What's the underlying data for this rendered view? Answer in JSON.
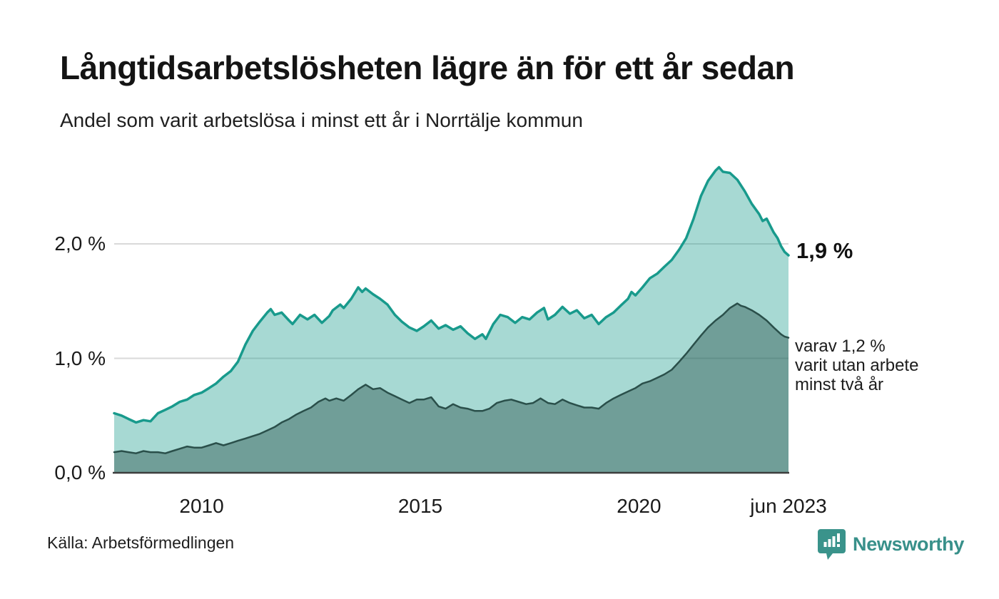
{
  "header": {
    "title": "Långtidsarbetslösheten lägre än för ett år sedan",
    "subtitle": "Andel som varit arbetslösa i minst ett år i Norrtälje kommun"
  },
  "annotations": {
    "latest_value": "1,9 %",
    "secondary_lines": [
      "varav 1,2 %",
      "varit utan arbete",
      "minst två år"
    ]
  },
  "footer": {
    "source": "Källa: Arbetsförmedlingen",
    "brand": "Newsworthy"
  },
  "colors": {
    "background": "#ffffff",
    "gridline": "#d9d9d9",
    "baseline": "#3d3d3d",
    "series_1yr_line": "#189a8c",
    "series_1yr_fill": "rgba(24,154,140,0.38)",
    "series_2yr_line": "#2a4f4a",
    "series_2yr_fill": "rgba(36,77,72,0.42)",
    "brand_teal": "#3a938b",
    "text": "#1a1a1a"
  },
  "chart_data": {
    "type": "area",
    "title": "Långtidsarbetslösheten lägre än för ett år sedan",
    "subtitle": "Andel som varit arbetslösa i minst ett år i Norrtälje kommun",
    "unit": "%",
    "x_range": [
      2008.0,
      2023.42
    ],
    "ylim": [
      0,
      2.8
    ],
    "grid": "horizontal-only",
    "legend_position": "annotated-right",
    "y_ticks": [
      {
        "value": 0.0,
        "label": "0,0 %"
      },
      {
        "value": 1.0,
        "label": "1,0 %"
      },
      {
        "value": 2.0,
        "label": "2,0 %"
      }
    ],
    "x_ticks": [
      {
        "year": 2010,
        "label": "2010"
      },
      {
        "year": 2015,
        "label": "2015"
      },
      {
        "year": 2020,
        "label": "2020"
      },
      {
        "year": 2023.42,
        "label": "jun 2023"
      }
    ],
    "series": [
      {
        "name": "Arbetslösa minst ett år",
        "latest_value_pct": 1.9,
        "points": [
          [
            2008.0,
            0.52
          ],
          [
            2008.17,
            0.5
          ],
          [
            2008.33,
            0.47
          ],
          [
            2008.5,
            0.44
          ],
          [
            2008.67,
            0.46
          ],
          [
            2008.83,
            0.45
          ],
          [
            2009.0,
            0.52
          ],
          [
            2009.17,
            0.55
          ],
          [
            2009.33,
            0.58
          ],
          [
            2009.5,
            0.62
          ],
          [
            2009.67,
            0.64
          ],
          [
            2009.83,
            0.68
          ],
          [
            2010.0,
            0.7
          ],
          [
            2010.17,
            0.74
          ],
          [
            2010.33,
            0.78
          ],
          [
            2010.5,
            0.84
          ],
          [
            2010.67,
            0.89
          ],
          [
            2010.83,
            0.97
          ],
          [
            2011.0,
            1.12
          ],
          [
            2011.17,
            1.24
          ],
          [
            2011.33,
            1.32
          ],
          [
            2011.5,
            1.4
          ],
          [
            2011.58,
            1.43
          ],
          [
            2011.67,
            1.38
          ],
          [
            2011.83,
            1.4
          ],
          [
            2012.0,
            1.33
          ],
          [
            2012.08,
            1.3
          ],
          [
            2012.25,
            1.38
          ],
          [
            2012.42,
            1.34
          ],
          [
            2012.58,
            1.38
          ],
          [
            2012.75,
            1.31
          ],
          [
            2012.92,
            1.37
          ],
          [
            2013.0,
            1.42
          ],
          [
            2013.17,
            1.47
          ],
          [
            2013.25,
            1.44
          ],
          [
            2013.42,
            1.52
          ],
          [
            2013.58,
            1.62
          ],
          [
            2013.67,
            1.58
          ],
          [
            2013.75,
            1.61
          ],
          [
            2013.92,
            1.56
          ],
          [
            2014.08,
            1.52
          ],
          [
            2014.25,
            1.47
          ],
          [
            2014.42,
            1.38
          ],
          [
            2014.58,
            1.32
          ],
          [
            2014.75,
            1.27
          ],
          [
            2014.92,
            1.24
          ],
          [
            2015.08,
            1.28
          ],
          [
            2015.25,
            1.33
          ],
          [
            2015.42,
            1.26
          ],
          [
            2015.58,
            1.29
          ],
          [
            2015.75,
            1.25
          ],
          [
            2015.92,
            1.28
          ],
          [
            2016.08,
            1.22
          ],
          [
            2016.25,
            1.17
          ],
          [
            2016.42,
            1.21
          ],
          [
            2016.5,
            1.17
          ],
          [
            2016.67,
            1.3
          ],
          [
            2016.83,
            1.38
          ],
          [
            2017.0,
            1.36
          ],
          [
            2017.17,
            1.31
          ],
          [
            2017.33,
            1.36
          ],
          [
            2017.5,
            1.34
          ],
          [
            2017.67,
            1.4
          ],
          [
            2017.83,
            1.44
          ],
          [
            2017.92,
            1.34
          ],
          [
            2018.08,
            1.38
          ],
          [
            2018.25,
            1.45
          ],
          [
            2018.42,
            1.39
          ],
          [
            2018.58,
            1.42
          ],
          [
            2018.75,
            1.35
          ],
          [
            2018.92,
            1.38
          ],
          [
            2019.08,
            1.3
          ],
          [
            2019.25,
            1.36
          ],
          [
            2019.42,
            1.4
          ],
          [
            2019.58,
            1.46
          ],
          [
            2019.75,
            1.52
          ],
          [
            2019.83,
            1.58
          ],
          [
            2019.92,
            1.55
          ],
          [
            2020.08,
            1.62
          ],
          [
            2020.25,
            1.7
          ],
          [
            2020.42,
            1.74
          ],
          [
            2020.58,
            1.8
          ],
          [
            2020.75,
            1.86
          ],
          [
            2020.92,
            1.95
          ],
          [
            2021.08,
            2.05
          ],
          [
            2021.25,
            2.22
          ],
          [
            2021.42,
            2.42
          ],
          [
            2021.58,
            2.55
          ],
          [
            2021.75,
            2.64
          ],
          [
            2021.83,
            2.67
          ],
          [
            2021.92,
            2.63
          ],
          [
            2022.08,
            2.62
          ],
          [
            2022.25,
            2.56
          ],
          [
            2022.42,
            2.46
          ],
          [
            2022.58,
            2.35
          ],
          [
            2022.75,
            2.26
          ],
          [
            2022.83,
            2.2
          ],
          [
            2022.92,
            2.22
          ],
          [
            2023.0,
            2.16
          ],
          [
            2023.08,
            2.1
          ],
          [
            2023.17,
            2.05
          ],
          [
            2023.25,
            1.98
          ],
          [
            2023.33,
            1.93
          ],
          [
            2023.42,
            1.9
          ]
        ]
      },
      {
        "name": "Arbetslösa minst två år",
        "latest_value_pct": 1.2,
        "points": [
          [
            2008.0,
            0.18
          ],
          [
            2008.17,
            0.19
          ],
          [
            2008.33,
            0.18
          ],
          [
            2008.5,
            0.17
          ],
          [
            2008.67,
            0.19
          ],
          [
            2008.83,
            0.18
          ],
          [
            2009.0,
            0.18
          ],
          [
            2009.17,
            0.17
          ],
          [
            2009.33,
            0.19
          ],
          [
            2009.5,
            0.21
          ],
          [
            2009.67,
            0.23
          ],
          [
            2009.83,
            0.22
          ],
          [
            2010.0,
            0.22
          ],
          [
            2010.17,
            0.24
          ],
          [
            2010.33,
            0.26
          ],
          [
            2010.5,
            0.24
          ],
          [
            2010.67,
            0.26
          ],
          [
            2010.83,
            0.28
          ],
          [
            2011.0,
            0.3
          ],
          [
            2011.17,
            0.32
          ],
          [
            2011.33,
            0.34
          ],
          [
            2011.5,
            0.37
          ],
          [
            2011.67,
            0.4
          ],
          [
            2011.83,
            0.44
          ],
          [
            2012.0,
            0.47
          ],
          [
            2012.17,
            0.51
          ],
          [
            2012.33,
            0.54
          ],
          [
            2012.5,
            0.57
          ],
          [
            2012.67,
            0.62
          ],
          [
            2012.83,
            0.65
          ],
          [
            2012.92,
            0.63
          ],
          [
            2013.08,
            0.65
          ],
          [
            2013.25,
            0.63
          ],
          [
            2013.42,
            0.68
          ],
          [
            2013.58,
            0.73
          ],
          [
            2013.75,
            0.77
          ],
          [
            2013.92,
            0.73
          ],
          [
            2014.08,
            0.74
          ],
          [
            2014.25,
            0.7
          ],
          [
            2014.42,
            0.67
          ],
          [
            2014.58,
            0.64
          ],
          [
            2014.75,
            0.61
          ],
          [
            2014.92,
            0.64
          ],
          [
            2015.08,
            0.64
          ],
          [
            2015.25,
            0.66
          ],
          [
            2015.42,
            0.58
          ],
          [
            2015.58,
            0.56
          ],
          [
            2015.75,
            0.6
          ],
          [
            2015.92,
            0.57
          ],
          [
            2016.08,
            0.56
          ],
          [
            2016.25,
            0.54
          ],
          [
            2016.42,
            0.54
          ],
          [
            2016.58,
            0.56
          ],
          [
            2016.75,
            0.61
          ],
          [
            2016.92,
            0.63
          ],
          [
            2017.08,
            0.64
          ],
          [
            2017.25,
            0.62
          ],
          [
            2017.42,
            0.6
          ],
          [
            2017.58,
            0.61
          ],
          [
            2017.75,
            0.65
          ],
          [
            2017.92,
            0.61
          ],
          [
            2018.08,
            0.6
          ],
          [
            2018.25,
            0.64
          ],
          [
            2018.42,
            0.61
          ],
          [
            2018.58,
            0.59
          ],
          [
            2018.75,
            0.57
          ],
          [
            2018.92,
            0.57
          ],
          [
            2019.08,
            0.56
          ],
          [
            2019.25,
            0.61
          ],
          [
            2019.42,
            0.65
          ],
          [
            2019.58,
            0.68
          ],
          [
            2019.75,
            0.71
          ],
          [
            2019.92,
            0.74
          ],
          [
            2020.08,
            0.78
          ],
          [
            2020.25,
            0.8
          ],
          [
            2020.42,
            0.83
          ],
          [
            2020.58,
            0.86
          ],
          [
            2020.75,
            0.9
          ],
          [
            2020.92,
            0.97
          ],
          [
            2021.08,
            1.04
          ],
          [
            2021.25,
            1.12
          ],
          [
            2021.42,
            1.2
          ],
          [
            2021.58,
            1.27
          ],
          [
            2021.75,
            1.33
          ],
          [
            2021.92,
            1.38
          ],
          [
            2022.08,
            1.44
          ],
          [
            2022.25,
            1.48
          ],
          [
            2022.33,
            1.46
          ],
          [
            2022.42,
            1.45
          ],
          [
            2022.58,
            1.42
          ],
          [
            2022.75,
            1.38
          ],
          [
            2022.92,
            1.33
          ],
          [
            2023.08,
            1.27
          ],
          [
            2023.25,
            1.21
          ],
          [
            2023.33,
            1.19
          ],
          [
            2023.42,
            1.18
          ]
        ]
      }
    ]
  }
}
